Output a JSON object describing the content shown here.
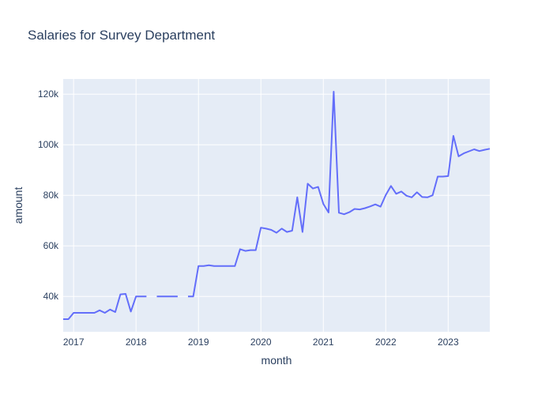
{
  "chart_data": {
    "type": "line",
    "title": "Salaries for Survey Department",
    "xlabel": "month",
    "ylabel": "amount",
    "x_ticks": [
      "2017",
      "2018",
      "2019",
      "2020",
      "2021",
      "2022",
      "2023"
    ],
    "y_ticks": [
      "40k",
      "60k",
      "80k",
      "100k",
      "120k"
    ],
    "y_tick_values": [
      40000,
      60000,
      80000,
      100000,
      120000
    ],
    "xlim": [
      "2016-11",
      "2023-09"
    ],
    "ylim": [
      26000,
      126000
    ],
    "grid": true,
    "colors": {
      "line": "#636efa",
      "plot_bg": "#e5ecf6",
      "grid": "#ffffff",
      "text": "#2a3f5f"
    },
    "series": [
      {
        "x": [
          "2016-11",
          "2016-12",
          "2017-01",
          "2017-02",
          "2017-03",
          "2017-04",
          "2017-05",
          "2017-06",
          "2017-07",
          "2017-08",
          "2017-09",
          "2017-10",
          "2017-11",
          "2017-12",
          "2018-01",
          "2018-02",
          "2018-03",
          "2018-04",
          "2018-05",
          "2018-06",
          "2018-07",
          "2018-08",
          "2018-09",
          "2018-10",
          "2018-11",
          "2018-12",
          "2019-01",
          "2019-02",
          "2019-03",
          "2019-04",
          "2019-05",
          "2019-06",
          "2019-07",
          "2019-08",
          "2019-09",
          "2019-10",
          "2019-11",
          "2019-12",
          "2020-01",
          "2020-02",
          "2020-03",
          "2020-04",
          "2020-05",
          "2020-06",
          "2020-07",
          "2020-08",
          "2020-09",
          "2020-10",
          "2020-11",
          "2020-12",
          "2021-01",
          "2021-02",
          "2021-03",
          "2021-04",
          "2021-05",
          "2021-06",
          "2021-07",
          "2021-08",
          "2021-09",
          "2021-10",
          "2021-11",
          "2021-12",
          "2022-01",
          "2022-02",
          "2022-03",
          "2022-04",
          "2022-05",
          "2022-06",
          "2022-07",
          "2022-08",
          "2022-09",
          "2022-10",
          "2022-11",
          "2022-12",
          "2023-01",
          "2023-02",
          "2023-03",
          "2023-04",
          "2023-05",
          "2023-06",
          "2023-07",
          "2023-08",
          "2023-09"
        ],
        "values": [
          31000,
          31000,
          33500,
          33500,
          33500,
          33500,
          33500,
          34500,
          33500,
          34800,
          33800,
          40800,
          41000,
          34000,
          40000,
          40000,
          40000,
          null,
          40000,
          40000,
          40000,
          40000,
          40000,
          null,
          40000,
          40000,
          52000,
          52000,
          52300,
          52000,
          52000,
          52000,
          52000,
          52000,
          58700,
          58000,
          58300,
          58300,
          67200,
          66800,
          66300,
          65200,
          66800,
          65500,
          66000,
          79200,
          65500,
          84600,
          82700,
          83300,
          76600,
          73200,
          121000,
          73100,
          72500,
          73300,
          74600,
          74400,
          74900,
          75600,
          76400,
          75500,
          80100,
          83700,
          80600,
          81500,
          79800,
          79200,
          81200,
          79300,
          79200,
          80000,
          87400,
          87400,
          87600,
          103500,
          95400,
          96600,
          97400,
          98200,
          97500,
          98000,
          98400
        ]
      }
    ]
  }
}
